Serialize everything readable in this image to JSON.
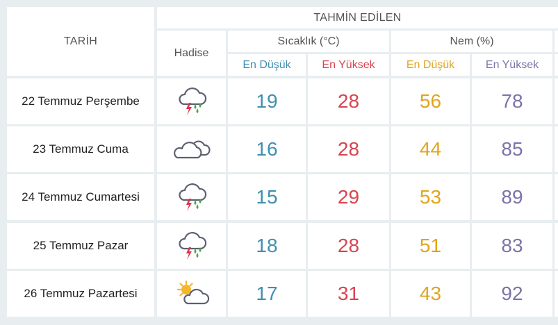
{
  "header": {
    "tarih": "TARİH",
    "forecast": "TAHMİN EDİLEN",
    "hadise": "Hadise",
    "temperature": "Sıcaklık (°C)",
    "humidity": "Nem (%)",
    "temp_low": "En Düşük",
    "temp_high": "En Yüksek",
    "hum_low": "En Düşük",
    "hum_high": "En Yüksek"
  },
  "colors": {
    "temp_low": "#3f8fb0",
    "temp_high": "#d9434f",
    "hum_low": "#e0a51c",
    "hum_high": "#7a74a8"
  },
  "rows": [
    {
      "date": "22 Temmuz Perşembe",
      "icon": "thunderstorm-rain-icon",
      "temp_low": "19",
      "temp_high": "28",
      "hum_low": "56",
      "hum_high": "78"
    },
    {
      "date": "23 Temmuz Cuma",
      "icon": "cloudy-icon",
      "temp_low": "16",
      "temp_high": "28",
      "hum_low": "44",
      "hum_high": "85"
    },
    {
      "date": "24 Temmuz Cumartesi",
      "icon": "thunderstorm-rain-icon",
      "temp_low": "15",
      "temp_high": "29",
      "hum_low": "53",
      "hum_high": "89"
    },
    {
      "date": "25 Temmuz Pazar",
      "icon": "thunderstorm-rain-icon",
      "temp_low": "18",
      "temp_high": "28",
      "hum_low": "51",
      "hum_high": "83"
    },
    {
      "date": "26 Temmuz Pazartesi",
      "icon": "partly-cloudy-sun-icon",
      "temp_low": "17",
      "temp_high": "31",
      "hum_low": "43",
      "hum_high": "92"
    }
  ]
}
